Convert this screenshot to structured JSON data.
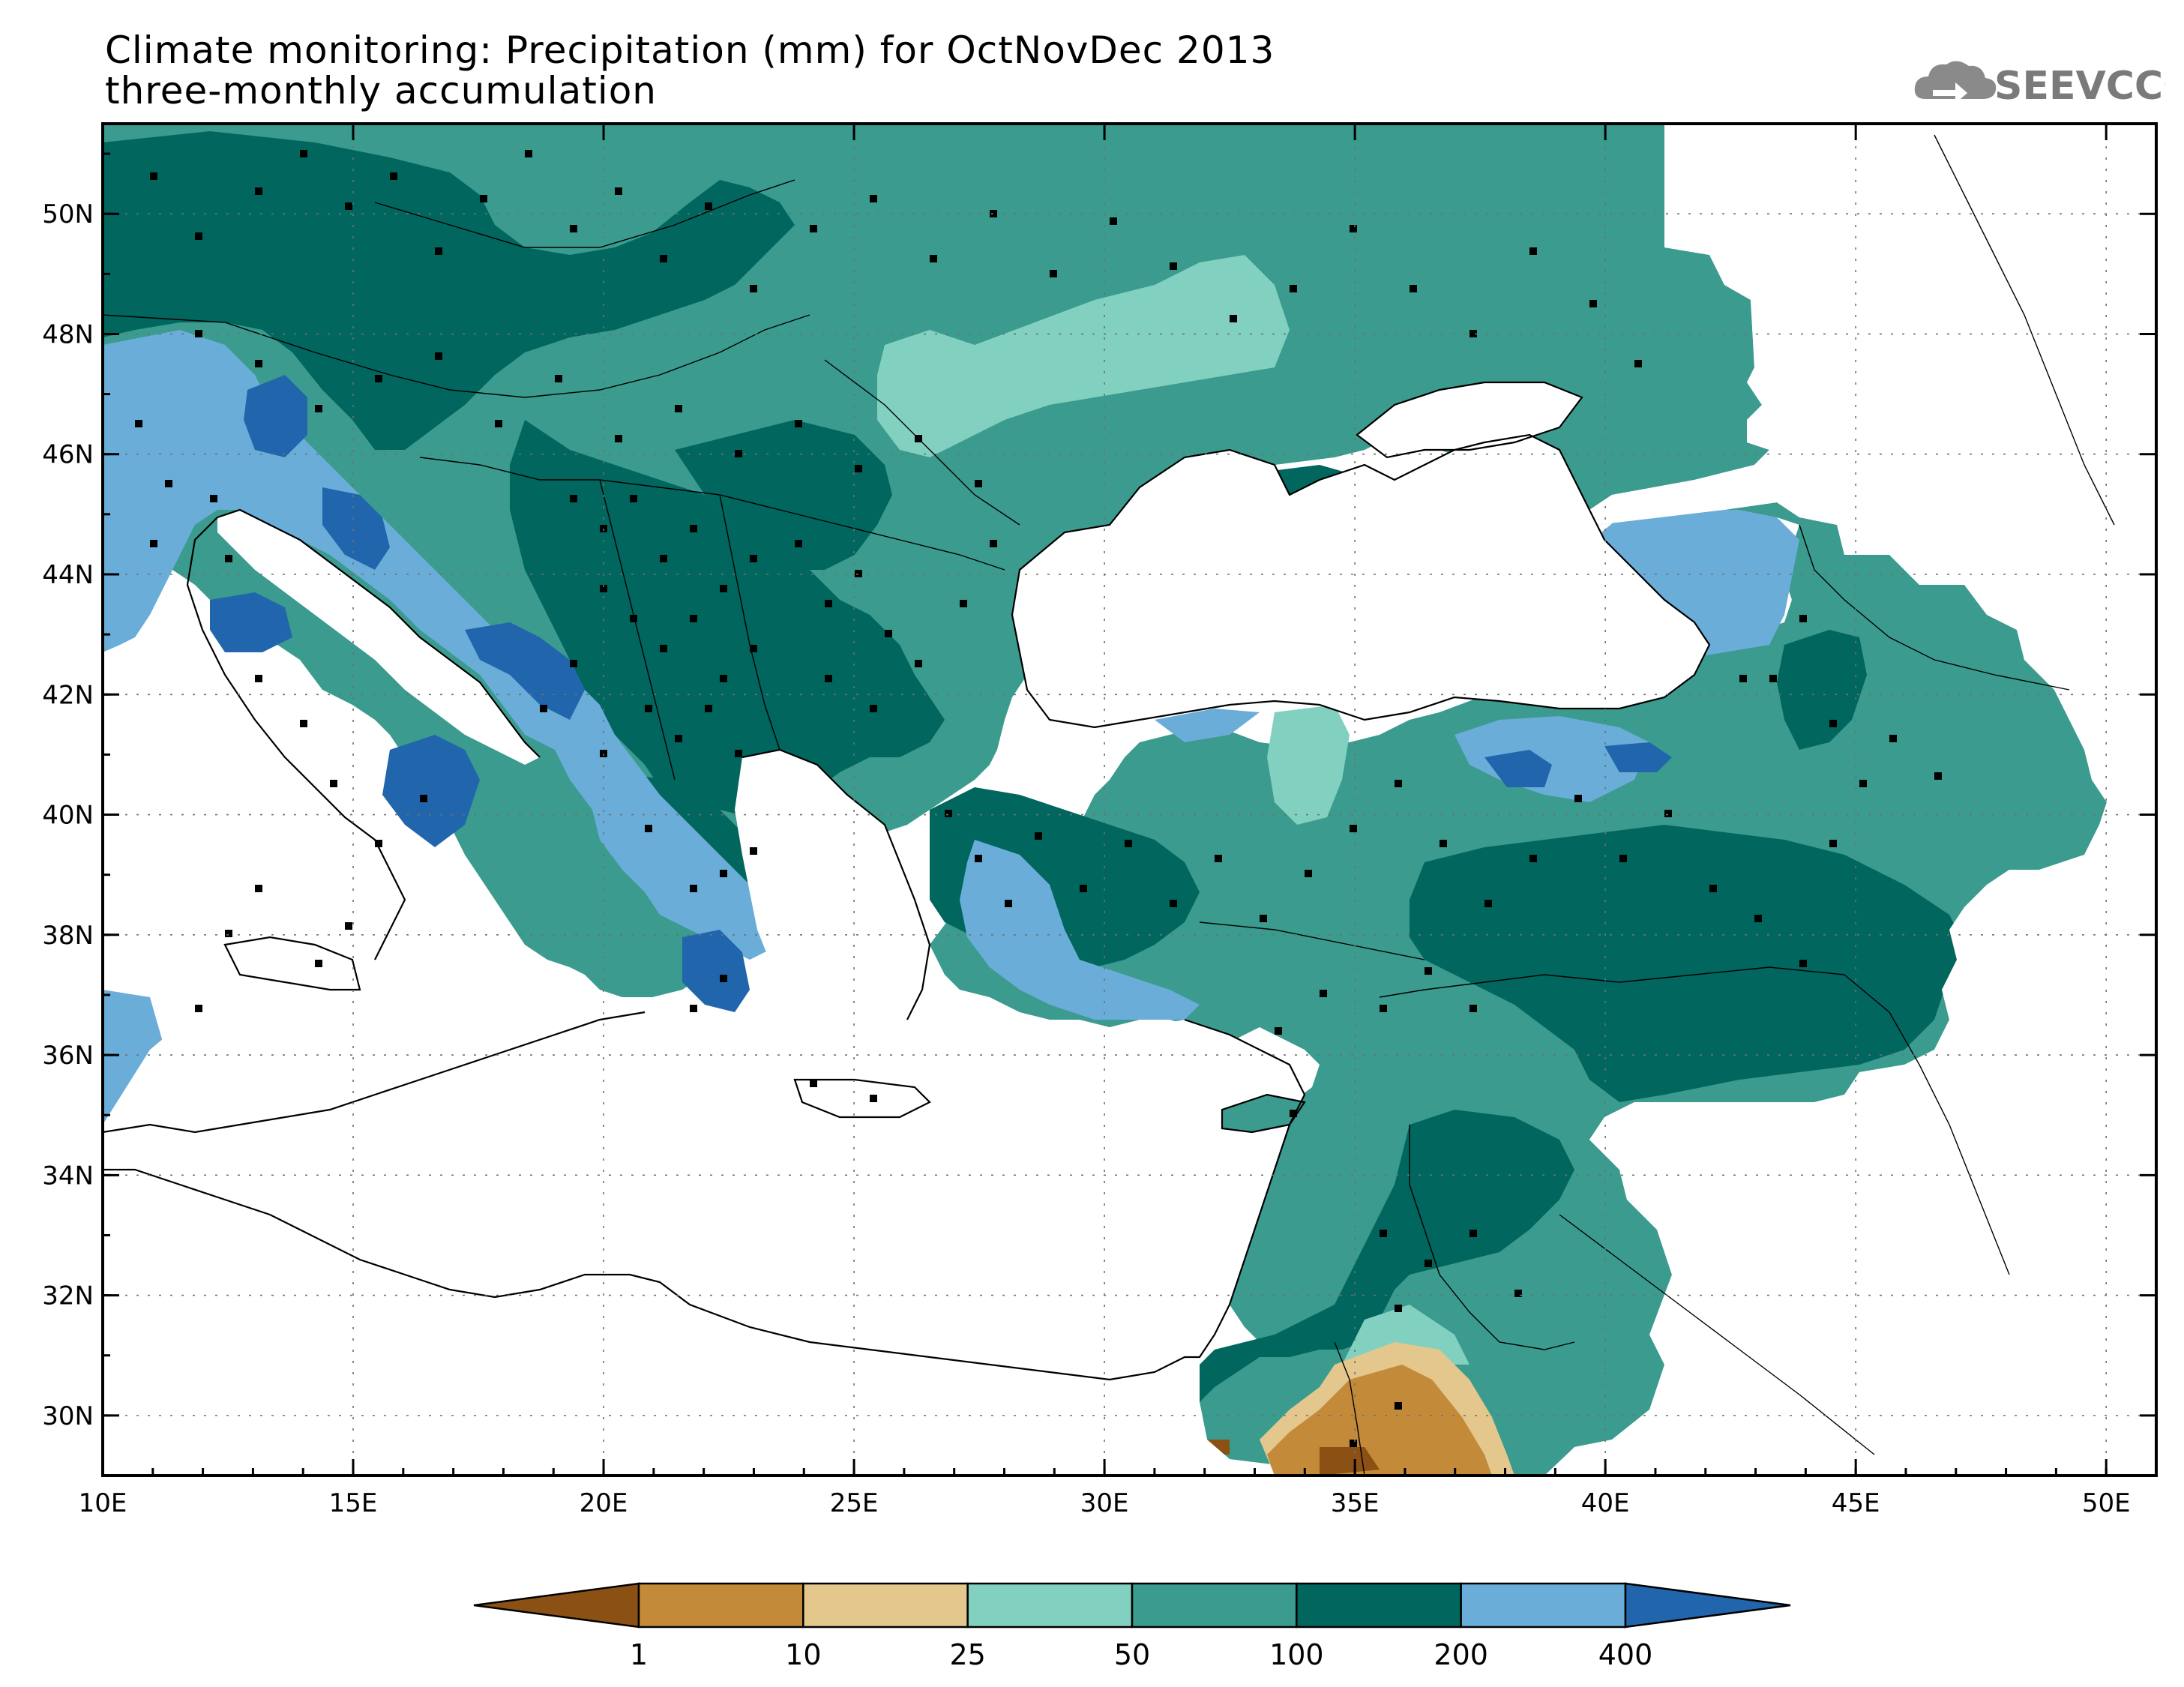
{
  "title": "Climate monitoring: Precipitation (mm) for OctNovDec 2013",
  "subtitle": "three-monthly accumulation",
  "logo_text": "SEEVCCC",
  "lon_ticks": [
    "10E",
    "15E",
    "20E",
    "25E",
    "30E",
    "35E",
    "40E",
    "45E",
    "50E"
  ],
  "lat_ticks": [
    "50N",
    "48N",
    "46N",
    "44N",
    "42N",
    "40N",
    "38N",
    "36N",
    "34N",
    "32N",
    "30N"
  ],
  "lon_values": [
    10,
    15,
    20,
    25,
    30,
    35,
    40,
    45,
    50
  ],
  "lat_values": [
    50,
    48,
    46,
    44,
    42,
    40,
    38,
    36,
    34,
    32,
    30
  ],
  "lon_range": [
    10,
    51
  ],
  "lat_range": [
    29,
    51.5
  ],
  "colorbar": {
    "boundaries": [
      "1",
      "10",
      "25",
      "50",
      "100",
      "200",
      "400"
    ],
    "colors": [
      "#8a5014",
      "#c38a3a",
      "#e3c78c",
      "#82d0c0",
      "#3a9b8e",
      "#01665e",
      "#6aadd8",
      "#2166ac"
    ]
  },
  "colors": {
    "dark_teal": "#01665e",
    "mid_teal": "#3a9b8e",
    "light_teal": "#82d0c0",
    "light_blue": "#6aadd8",
    "dark_blue": "#2166ac",
    "tan": "#e3c78c",
    "light_brown": "#c38a3a",
    "dark_brown": "#8a5014"
  }
}
